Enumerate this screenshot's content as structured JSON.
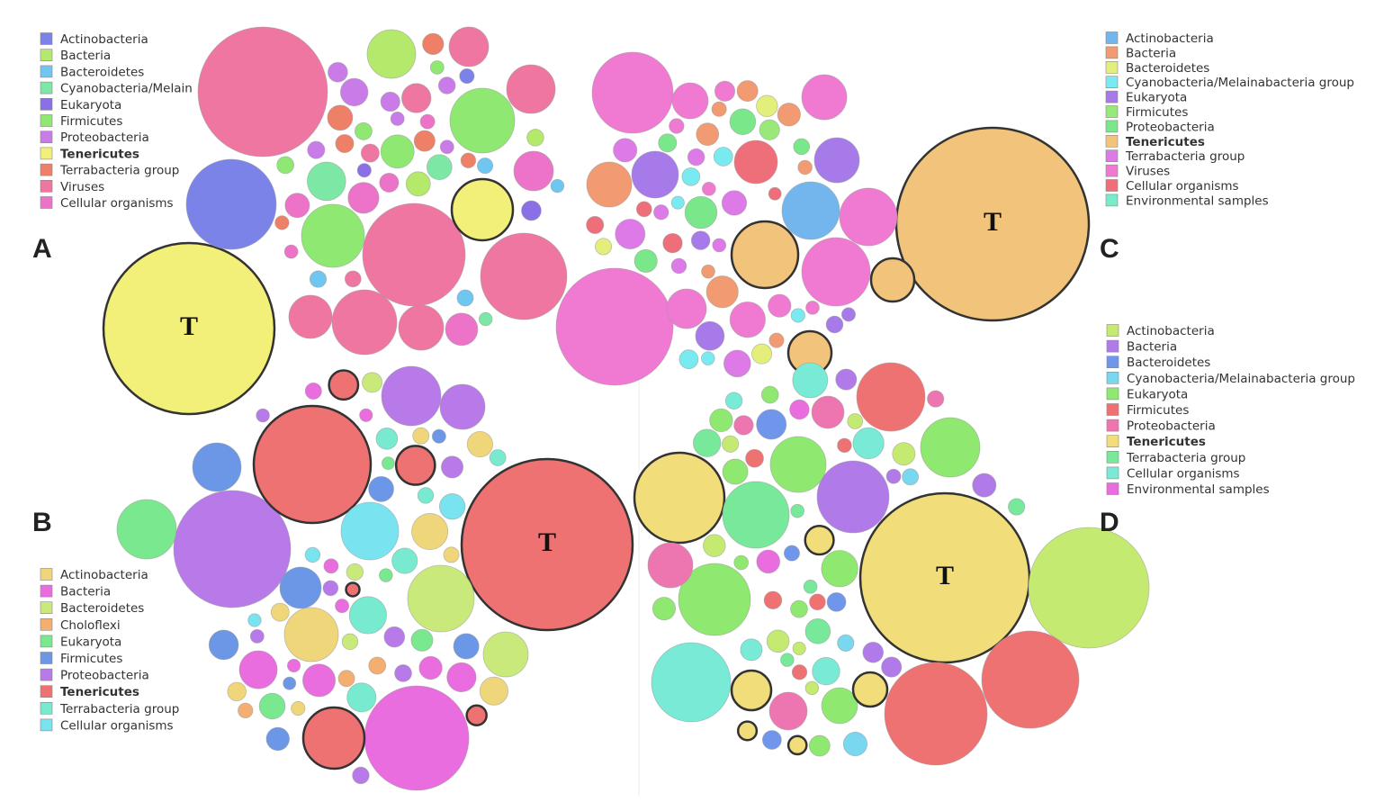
{
  "panels": [
    {
      "label": "A",
      "marker": "T",
      "legend": [
        {
          "name": "Actinobacteria",
          "color": "#7b83e8"
        },
        {
          "name": "Bacteria",
          "color": "#b5e96b"
        },
        {
          "name": "Bacteroidetes",
          "color": "#6fc6f0"
        },
        {
          "name": "Cyanobacteria/Melain",
          "color": "#7de8a5"
        },
        {
          "name": "Eukaryota",
          "color": "#8a6fe6"
        },
        {
          "name": "Firmicutes",
          "color": "#8ee872"
        },
        {
          "name": "Proteobacteria",
          "color": "#c97be8"
        },
        {
          "name": "Tenericutes",
          "color": "#f3f07a",
          "emphasis": true
        },
        {
          "name": "Terrabacteria group",
          "color": "#ee8068"
        },
        {
          "name": "Viruses",
          "color": "#ee76a0"
        },
        {
          "name": "Cellular organisms",
          "color": "#ec73c8"
        }
      ]
    },
    {
      "label": "B",
      "marker": "T",
      "legend": [
        {
          "name": "Actinobacteria",
          "color": "#f0d67a"
        },
        {
          "name": "Bacteria",
          "color": "#ea6de0"
        },
        {
          "name": "Bacteroidetes",
          "color": "#c9ea7a"
        },
        {
          "name": "Choloflexi",
          "color": "#f3ae70"
        },
        {
          "name": "Eukaryota",
          "color": "#79e88e"
        },
        {
          "name": "Firmicutes",
          "color": "#6b97e6"
        },
        {
          "name": "Proteobacteria",
          "color": "#b77ae8"
        },
        {
          "name": "Tenericutes",
          "color": "#ee7272",
          "emphasis": true
        },
        {
          "name": "Terrabacteria group",
          "color": "#78ead0"
        },
        {
          "name": "Cellular organisms",
          "color": "#79e3f0"
        }
      ]
    },
    {
      "label": "C",
      "marker": "T",
      "legend": [
        {
          "name": "Actinobacteria",
          "color": "#73b6ee"
        },
        {
          "name": "Bacteria",
          "color": "#f29a72"
        },
        {
          "name": "Bacteroidetes",
          "color": "#e4ee7a"
        },
        {
          "name": "Cyanobacteria/Melainabacteria group",
          "color": "#79eaf0"
        },
        {
          "name": "Eukaryota",
          "color": "#a77aea"
        },
        {
          "name": "Firmicutes",
          "color": "#98e87a"
        },
        {
          "name": "Proteobacteria",
          "color": "#7ae88a"
        },
        {
          "name": "Tenericutes",
          "color": "#f2c47b",
          "emphasis": true
        },
        {
          "name": "Terrabacteria group",
          "color": "#dd7ae8"
        },
        {
          "name": "Viruses",
          "color": "#f07ad2"
        },
        {
          "name": "Cellular organisms",
          "color": "#ee6f7a"
        },
        {
          "name": "Environmental samples",
          "color": "#78ecc8"
        }
      ]
    },
    {
      "label": "D",
      "marker": "T",
      "legend": [
        {
          "name": "Actinobacteria",
          "color": "#c5ea72"
        },
        {
          "name": "Bacteria",
          "color": "#b07ae8"
        },
        {
          "name": "Bacteroidetes",
          "color": "#6f96ea"
        },
        {
          "name": "Cyanobacteria/Melainabacteria group",
          "color": "#79d8f0"
        },
        {
          "name": "Eukaryota",
          "color": "#8fe86f"
        },
        {
          "name": "Firmicutes",
          "color": "#ef7272"
        },
        {
          "name": "Proteobacteria",
          "color": "#ee76b0"
        },
        {
          "name": "Tenericutes",
          "color": "#f1dd7a",
          "emphasis": true
        },
        {
          "name": "Terrabacteria group",
          "color": "#78e89a"
        },
        {
          "name": "Cellular organisms",
          "color": "#78ead6"
        },
        {
          "name": "Environmental samples",
          "color": "#ea6de0"
        }
      ]
    }
  ]
}
